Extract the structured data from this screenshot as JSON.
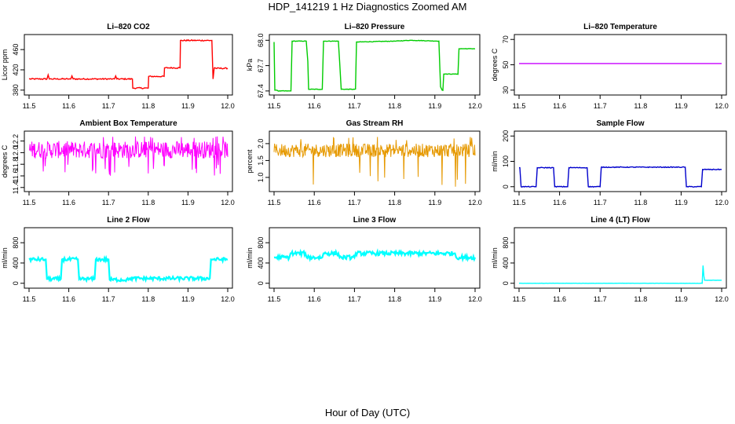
{
  "page": {
    "title": "HDP_141219  1 Hz Diagnostics Zoomed AM",
    "xlabel": "Hour of Day (UTC)"
  },
  "chart_data": [
    {
      "type": "line",
      "title": "Li–820 CO2",
      "ylabel": "Licor ppm",
      "color": "#ff0000",
      "xlim": [
        11.5,
        12.0
      ],
      "ylim": [
        375,
        485
      ],
      "xticks": [
        11.5,
        11.6,
        11.7,
        11.8,
        11.9,
        12.0
      ],
      "xtick_labels": [
        "11.5",
        "11.6",
        "11.7",
        "11.8",
        "11.9",
        "12.0"
      ],
      "yticks": [
        380,
        420,
        460
      ],
      "ytick_labels": [
        "380",
        "420",
        "460"
      ],
      "noise": 1.2,
      "x": [
        11.5,
        11.545,
        11.548,
        11.551,
        11.6,
        11.605,
        11.608,
        11.611,
        11.71,
        11.715,
        11.718,
        11.721,
        11.76,
        11.761,
        11.8,
        11.801,
        11.84,
        11.841,
        11.88,
        11.881,
        11.96,
        11.963,
        11.966,
        11.97,
        12.0
      ],
      "y": [
        402,
        402,
        410,
        402,
        402,
        402,
        408,
        402,
        402,
        402,
        408,
        402,
        402,
        384,
        384,
        407,
        407,
        424,
        424,
        478,
        478,
        402,
        424,
        423,
        423
      ]
    },
    {
      "type": "line",
      "title": "Li–820 Pressure",
      "ylabel": "kPa",
      "color": "#00cc00",
      "xlim": [
        11.5,
        12.0
      ],
      "ylim": [
        67.38,
        68.04
      ],
      "xticks": [
        11.5,
        11.6,
        11.7,
        11.8,
        11.9,
        12.0
      ],
      "xtick_labels": [
        "11.5",
        "11.6",
        "11.7",
        "11.8",
        "11.9",
        "12.0"
      ],
      "yticks": [
        67.4,
        67.7,
        68.0
      ],
      "ytick_labels": [
        "67.4",
        "67.7",
        "68.0"
      ],
      "noise": 0.003,
      "x": [
        11.5,
        11.502,
        11.51,
        11.542,
        11.545,
        11.58,
        11.584,
        11.586,
        11.62,
        11.623,
        11.625,
        11.66,
        11.663,
        11.667,
        11.7,
        11.705,
        11.708,
        11.8,
        11.84,
        11.91,
        11.914,
        11.918,
        11.922,
        11.926,
        11.955,
        11.96,
        11.968,
        12.0
      ],
      "y": [
        67.98,
        67.41,
        67.4,
        67.4,
        67.99,
        67.99,
        67.75,
        67.42,
        67.42,
        67.99,
        67.99,
        67.99,
        67.75,
        67.42,
        67.42,
        67.98,
        67.98,
        67.99,
        68.0,
        67.99,
        67.45,
        67.41,
        67.6,
        67.6,
        67.6,
        67.9,
        67.9,
        67.9
      ]
    },
    {
      "type": "line",
      "title": "Li–820 Temperature",
      "ylabel": "degrees C",
      "color": "#ff00ff",
      "color2": "#0000ff",
      "xlim": [
        11.5,
        12.0
      ],
      "ylim": [
        28,
        72
      ],
      "xticks": [
        11.5,
        11.6,
        11.7,
        11.8,
        11.9,
        12.0
      ],
      "xtick_labels": [
        "11.5",
        "11.6",
        "11.7",
        "11.8",
        "11.9",
        "12.0"
      ],
      "yticks": [
        30,
        50,
        70
      ],
      "ytick_labels": [
        "30",
        "50",
        "70"
      ],
      "noise": 0,
      "x": [
        11.5,
        12.0
      ],
      "y": [
        51,
        51
      ]
    },
    {
      "type": "line",
      "title": "Ambient Box Temperature",
      "ylabel": "degrees C",
      "color": "#ff00ff",
      "xlim": [
        11.5,
        12.0
      ],
      "ylim": [
        11.37,
        12.33
      ],
      "xticks": [
        11.5,
        11.6,
        11.7,
        11.8,
        11.9,
        12.0
      ],
      "xtick_labels": [
        "11.5",
        "11.6",
        "11.7",
        "11.8",
        "11.9",
        "12.0"
      ],
      "yticks": [
        11.4,
        11.6,
        11.8,
        12.0,
        12.2
      ],
      "ytick_labels": [
        "11.4",
        "11.6",
        "11.8",
        "12.0",
        "12.2"
      ],
      "band": [
        11.9,
        12.2
      ],
      "spikes_low": [
        11.6,
        11.8
      ],
      "spikes_high": [
        12.28,
        12.25
      ],
      "x": [
        11.5,
        12.0
      ],
      "y": [
        12.05,
        12.05
      ]
    },
    {
      "type": "line",
      "title": "Gas Stream RH",
      "ylabel": "percent",
      "color": "#e69900",
      "xlim": [
        11.5,
        12.0
      ],
      "ylim": [
        0.65,
        2.3
      ],
      "xticks": [
        11.5,
        11.6,
        11.7,
        11.8,
        11.9,
        12.0
      ],
      "xtick_labels": [
        "11.5",
        "11.6",
        "11.7",
        "11.8",
        "11.9",
        "12.0"
      ],
      "yticks": [
        1.0,
        1.5,
        2.0
      ],
      "ytick_labels": [
        "1.0",
        "1.5",
        "2.0"
      ],
      "band": [
        1.6,
        2.0
      ],
      "spikes_low": [
        0.7,
        1.2
      ],
      "spikes_high": [
        2.2,
        2.1
      ],
      "x": [
        11.5,
        12.0
      ],
      "y": [
        1.8,
        1.8
      ]
    },
    {
      "type": "line",
      "title": "Sample Flow",
      "ylabel": "ml/min",
      "color": "#0000cc",
      "xlim": [
        11.5,
        12.0
      ],
      "ylim": [
        -10,
        210
      ],
      "xticks": [
        11.5,
        11.6,
        11.7,
        11.8,
        11.9,
        12.0
      ],
      "xtick_labels": [
        "11.5",
        "11.6",
        "11.7",
        "11.8",
        "11.9",
        "12.0"
      ],
      "yticks": [
        0,
        100,
        200
      ],
      "ytick_labels": [
        "0",
        "100",
        "200"
      ],
      "noise": 1.5,
      "x": [
        11.5,
        11.502,
        11.505,
        11.542,
        11.545,
        11.585,
        11.588,
        11.62,
        11.623,
        11.668,
        11.671,
        11.7,
        11.703,
        11.91,
        11.913,
        11.95,
        11.953,
        12.0
      ],
      "y": [
        75,
        75,
        0,
        0,
        75,
        75,
        0,
        0,
        75,
        75,
        0,
        0,
        77,
        77,
        0,
        0,
        68,
        68
      ]
    },
    {
      "type": "line",
      "title": "Line 2 Flow",
      "ylabel": "ml/min",
      "color": "#00ffff",
      "xlim": [
        11.5,
        12.0
      ],
      "ylim": [
        -50,
        1050
      ],
      "xticks": [
        11.5,
        11.6,
        11.7,
        11.8,
        11.9,
        12.0
      ],
      "xtick_labels": [
        "11.5",
        "11.6",
        "11.7",
        "11.8",
        "11.9",
        "12.0"
      ],
      "yticks": [
        0,
        400,
        800
      ],
      "ytick_labels": [
        "0",
        "400",
        "800"
      ],
      "noise": 35,
      "x": [
        11.5,
        11.542,
        11.545,
        11.58,
        11.583,
        11.623,
        11.626,
        11.665,
        11.668,
        11.7,
        11.703,
        11.75,
        11.753,
        11.955,
        11.958,
        12.0
      ],
      "y": [
        470,
        470,
        85,
        85,
        470,
        470,
        85,
        85,
        470,
        470,
        70,
        70,
        95,
        95,
        470,
        470
      ]
    },
    {
      "type": "line",
      "title": "Line 3 Flow",
      "ylabel": "ml/min",
      "color": "#00ffff",
      "xlim": [
        11.5,
        12.0
      ],
      "ylim": [
        -50,
        1050
      ],
      "xticks": [
        11.5,
        11.6,
        11.7,
        11.8,
        11.9,
        12.0
      ],
      "xtick_labels": [
        "11.5",
        "11.6",
        "11.7",
        "11.8",
        "11.9",
        "12.0"
      ],
      "yticks": [
        0,
        400,
        800
      ],
      "ytick_labels": [
        "0",
        "400",
        "800"
      ],
      "noise": 40,
      "x": [
        11.5,
        11.538,
        11.541,
        11.578,
        11.581,
        11.62,
        11.623,
        11.66,
        11.663,
        11.7,
        11.703,
        11.95,
        11.953,
        12.0
      ],
      "y": [
        510,
        510,
        590,
        590,
        510,
        510,
        590,
        590,
        510,
        510,
        590,
        590,
        510,
        510
      ]
    },
    {
      "type": "line",
      "title": "Line 4 (LT) Flow",
      "ylabel": "ml/min",
      "color": "#00ffff",
      "xlim": [
        11.5,
        12.0
      ],
      "ylim": [
        -50,
        1050
      ],
      "xticks": [
        11.5,
        11.6,
        11.7,
        11.8,
        11.9,
        12.0
      ],
      "xtick_labels": [
        "11.5",
        "11.6",
        "11.7",
        "11.8",
        "11.9",
        "12.0"
      ],
      "yticks": [
        0,
        400,
        800
      ],
      "ytick_labels": [
        "0",
        "400",
        "800"
      ],
      "noise": 2,
      "x": [
        11.5,
        11.952,
        11.954,
        11.956,
        11.958,
        11.962,
        12.0
      ],
      "y": [
        0,
        0,
        350,
        150,
        60,
        60,
        60
      ]
    }
  ]
}
